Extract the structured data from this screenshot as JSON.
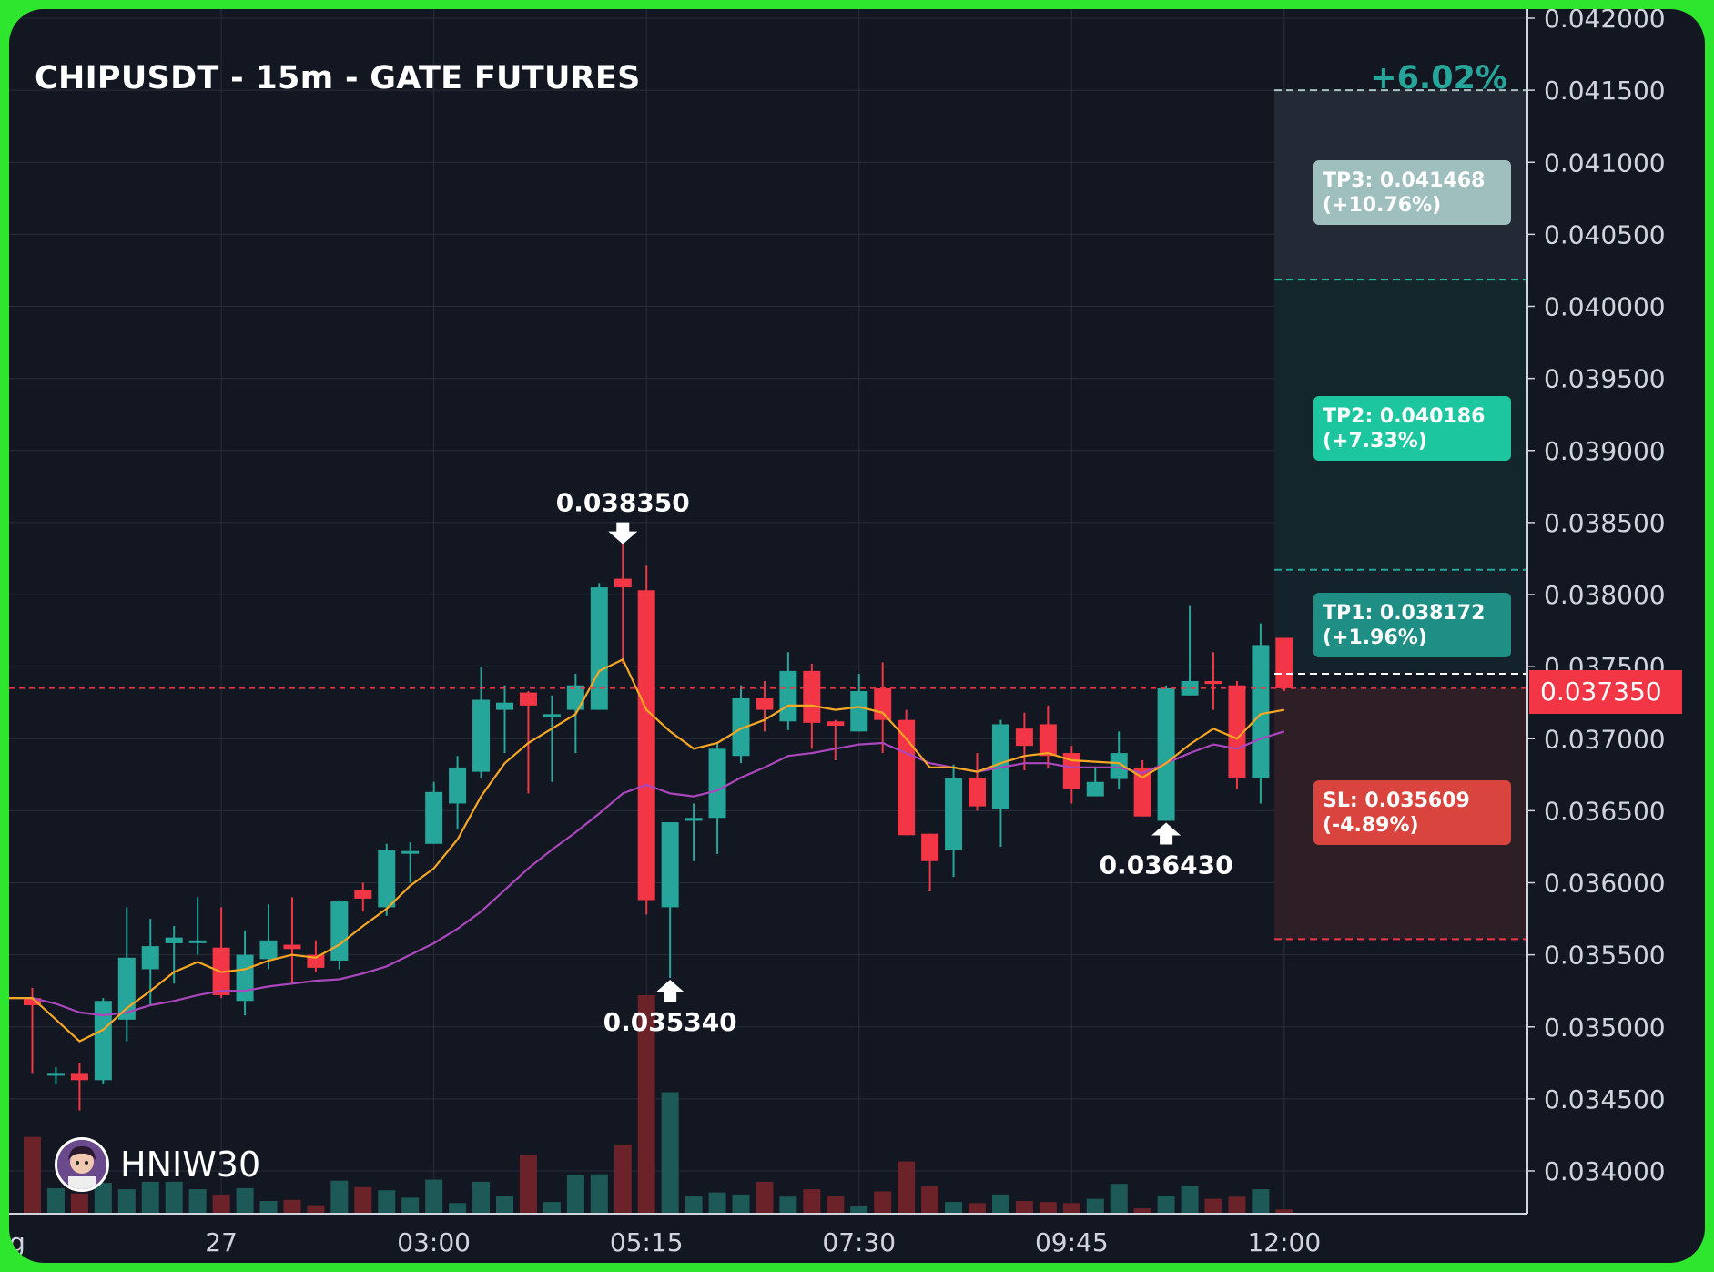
{
  "header": {
    "title": "CHIPUSDT - 15m - GATE FUTURES",
    "change_percent": "+6.02%"
  },
  "watermark": {
    "username": "HNIW30",
    "avatar_icon": "avatar-icon"
  },
  "colors": {
    "bg": "#131722",
    "grid": "#2a2e39",
    "bull": "#26a69a",
    "bear": "#f23645",
    "ma_fast": "#f5a623",
    "ma_slow": "#ab47bc",
    "text": "#d1d4dc",
    "tp3_box": "#9fbfbf",
    "tp2_box": "#1cc7a0",
    "tp1_box": "#1f8f86",
    "sl_box": "#d9443f"
  },
  "chart_data": {
    "type": "candlestick",
    "symbol": "CHIPUSDT",
    "interval": "15m",
    "exchange": "GATE FUTURES",
    "ylim": [
      0.0337,
      0.04205
    ],
    "y_ticks": [
      "0.042000",
      "0.041500",
      "0.041000",
      "0.040500",
      "0.040000",
      "0.039500",
      "0.039000",
      "0.038500",
      "0.038000",
      "0.037500",
      "0.037000",
      "0.036500",
      "0.036000",
      "0.035500",
      "0.035000",
      "0.034500",
      "0.034000"
    ],
    "x_ticks": [
      {
        "label": "g",
        "index": -0.5
      },
      {
        "label": "27",
        "index": 8
      },
      {
        "label": "03:00",
        "index": 17
      },
      {
        "label": "05:15",
        "index": 26
      },
      {
        "label": "07:30",
        "index": 35
      },
      {
        "label": "09:45",
        "index": 44
      },
      {
        "label": "12:00",
        "index": 53
      }
    ],
    "candles": [
      [
        0.0352,
        0.03515,
        0.0347,
        0.03468,
        0.03527
      ],
      [
        0.03467,
        0.03468,
        0.03465,
        0.0346,
        0.03472
      ],
      [
        0.03468,
        0.03463,
        0.03463,
        0.03442,
        0.03475
      ],
      [
        0.03463,
        0.03518,
        0.03463,
        0.0346,
        0.0352
      ],
      [
        0.03505,
        0.03548,
        0.03505,
        0.0349,
        0.03583
      ],
      [
        0.0354,
        0.03556,
        0.0354,
        0.03515,
        0.03575
      ],
      [
        0.03558,
        0.03562,
        0.03558,
        0.0353,
        0.0357
      ],
      [
        0.0356,
        0.0356,
        0.0356,
        0.0355,
        0.0359
      ],
      [
        0.03555,
        0.03522,
        0.03522,
        0.0352,
        0.03583
      ],
      [
        0.03518,
        0.0355,
        0.03518,
        0.03508,
        0.03567
      ],
      [
        0.03547,
        0.0356,
        0.03547,
        0.0354,
        0.03585
      ],
      [
        0.03557,
        0.03554,
        0.03554,
        0.0353,
        0.0359
      ],
      [
        0.0355,
        0.03541,
        0.03541,
        0.03538,
        0.0356
      ],
      [
        0.03546,
        0.03587,
        0.03546,
        0.0354,
        0.03588
      ],
      [
        0.03595,
        0.03589,
        0.03589,
        0.0358,
        0.036
      ],
      [
        0.03583,
        0.03623,
        0.03583,
        0.03577,
        0.03627
      ],
      [
        0.03622,
        0.03622,
        0.03622,
        0.036,
        0.03628
      ],
      [
        0.03627,
        0.03663,
        0.03627,
        0.03627,
        0.0367
      ],
      [
        0.03655,
        0.0368,
        0.03655,
        0.03637,
        0.03688
      ],
      [
        0.03677,
        0.03727,
        0.03677,
        0.03673,
        0.0375
      ],
      [
        0.0372,
        0.03725,
        0.0372,
        0.0369,
        0.03737
      ],
      [
        0.03732,
        0.03723,
        0.03723,
        0.03662,
        0.03733
      ],
      [
        0.03715,
        0.03717,
        0.03715,
        0.0367,
        0.0373
      ],
      [
        0.0372,
        0.03737,
        0.0372,
        0.0369,
        0.03745
      ],
      [
        0.0372,
        0.03805,
        0.0372,
        0.0372,
        0.03808
      ],
      [
        0.03811,
        0.03805,
        0.03805,
        0.03752,
        0.03835
      ],
      [
        0.03803,
        0.03588,
        0.03588,
        0.03578,
        0.0382
      ],
      [
        0.03583,
        0.03642,
        0.03583,
        0.03534,
        0.03642
      ],
      [
        0.03643,
        0.03645,
        0.03643,
        0.03615,
        0.03655
      ],
      [
        0.03645,
        0.03693,
        0.03645,
        0.0362,
        0.03697
      ],
      [
        0.03688,
        0.03728,
        0.03688,
        0.03683,
        0.03737
      ],
      [
        0.03728,
        0.0372,
        0.0372,
        0.03705,
        0.0374
      ],
      [
        0.03712,
        0.03747,
        0.03712,
        0.03706,
        0.0376
      ],
      [
        0.03747,
        0.03711,
        0.03711,
        0.03693,
        0.03752
      ],
      [
        0.03712,
        0.03709,
        0.03709,
        0.03685,
        0.03713
      ],
      [
        0.03705,
        0.03733,
        0.03705,
        0.03705,
        0.03745
      ],
      [
        0.03735,
        0.03713,
        0.03713,
        0.0369,
        0.03753
      ],
      [
        0.03713,
        0.03633,
        0.03633,
        0.03633,
        0.0372
      ],
      [
        0.03634,
        0.03615,
        0.03615,
        0.03594,
        0.03634
      ],
      [
        0.03623,
        0.03673,
        0.03623,
        0.03604,
        0.03682
      ],
      [
        0.03673,
        0.03653,
        0.03653,
        0.0365,
        0.0369
      ],
      [
        0.03651,
        0.0371,
        0.03651,
        0.03625,
        0.03713
      ],
      [
        0.03707,
        0.03695,
        0.03695,
        0.03678,
        0.03718
      ],
      [
        0.0371,
        0.03688,
        0.03688,
        0.0368,
        0.03723
      ],
      [
        0.0369,
        0.03665,
        0.03665,
        0.03655,
        0.03695
      ],
      [
        0.0366,
        0.0367,
        0.0366,
        0.0366,
        0.0368
      ],
      [
        0.03672,
        0.0369,
        0.03672,
        0.03665,
        0.03705
      ],
      [
        0.0368,
        0.03646,
        0.03646,
        0.03646,
        0.03685
      ],
      [
        0.03643,
        0.03735,
        0.03643,
        0.03643,
        0.03737
      ],
      [
        0.0373,
        0.0374,
        0.0373,
        0.0373,
        0.03792
      ],
      [
        0.0374,
        0.03738,
        0.03738,
        0.0372,
        0.0376
      ],
      [
        0.03737,
        0.03673,
        0.03673,
        0.03665,
        0.0374
      ],
      [
        0.03673,
        0.03765,
        0.03673,
        0.03655,
        0.0378
      ],
      [
        0.0377,
        0.03735,
        0.03735,
        0.03733,
        0.0377
      ]
    ],
    "ma_fast": [
      0.0352,
      0.03505,
      0.0349,
      0.03498,
      0.03513,
      0.03525,
      0.03538,
      0.03545,
      0.03538,
      0.0354,
      0.03546,
      0.0355,
      0.03548,
      0.03557,
      0.0357,
      0.03582,
      0.03598,
      0.0361,
      0.0363,
      0.0366,
      0.03683,
      0.03697,
      0.03707,
      0.03717,
      0.03747,
      0.03755,
      0.0372,
      0.03705,
      0.03693,
      0.03697,
      0.03707,
      0.03713,
      0.03723,
      0.03723,
      0.0372,
      0.03722,
      0.03718,
      0.037,
      0.0368,
      0.0368,
      0.03677,
      0.03683,
      0.03688,
      0.0369,
      0.03685,
      0.03684,
      0.03683,
      0.03673,
      0.03683,
      0.03696,
      0.03707,
      0.037,
      0.03717,
      0.0372
    ],
    "ma_slow": [
      0.0352,
      0.03516,
      0.0351,
      0.03508,
      0.0351,
      0.03515,
      0.03518,
      0.03522,
      0.03525,
      0.03525,
      0.03528,
      0.0353,
      0.03532,
      0.03533,
      0.03537,
      0.03542,
      0.0355,
      0.03558,
      0.03568,
      0.0358,
      0.03595,
      0.0361,
      0.03623,
      0.03635,
      0.03648,
      0.03662,
      0.03668,
      0.03662,
      0.0366,
      0.03664,
      0.03673,
      0.0368,
      0.03688,
      0.0369,
      0.03693,
      0.03696,
      0.03697,
      0.0369,
      0.03683,
      0.0368,
      0.03677,
      0.0368,
      0.03683,
      0.03683,
      0.0368,
      0.0368,
      0.0368,
      0.03676,
      0.03683,
      0.0369,
      0.03696,
      0.03693,
      0.037,
      0.03705
    ],
    "volumes": [
      72,
      24,
      19,
      29,
      23,
      30,
      30,
      23,
      18,
      24,
      12,
      13,
      8,
      31,
      25,
      22,
      15,
      32,
      10,
      30,
      17,
      55,
      11,
      36,
      37,
      65,
      205,
      114,
      17,
      20,
      18,
      30,
      16,
      23,
      17,
      7,
      21,
      49,
      26,
      11,
      10,
      18,
      12,
      11,
      10,
      14,
      28,
      5,
      17,
      26,
      14,
      16,
      23,
      4
    ],
    "annotations": [
      {
        "label": "0.038350",
        "index": 25,
        "price": 0.03835,
        "direction": "down"
      },
      {
        "label": "0.035340",
        "index": 27,
        "price": 0.03534,
        "direction": "up"
      },
      {
        "label": "0.036430",
        "index": 48,
        "price": 0.03643,
        "direction": "up"
      }
    ],
    "current_price": {
      "value": 0.03735,
      "label": "0.037350"
    },
    "levels": {
      "entry": 0.03745,
      "tp1": {
        "price": 0.038172,
        "label": "TP1: 0.038172",
        "change": "(+1.96%)"
      },
      "tp2": {
        "price": 0.040186,
        "label": "TP2: 0.040186",
        "change": "(+7.33%)"
      },
      "tp3": {
        "price": 0.041468,
        "label": "TP3: 0.041468",
        "change": "(+10.76%)"
      },
      "sl": {
        "price": 0.035609,
        "label": "SL: 0.035609",
        "change": "(-4.89%)"
      }
    }
  }
}
